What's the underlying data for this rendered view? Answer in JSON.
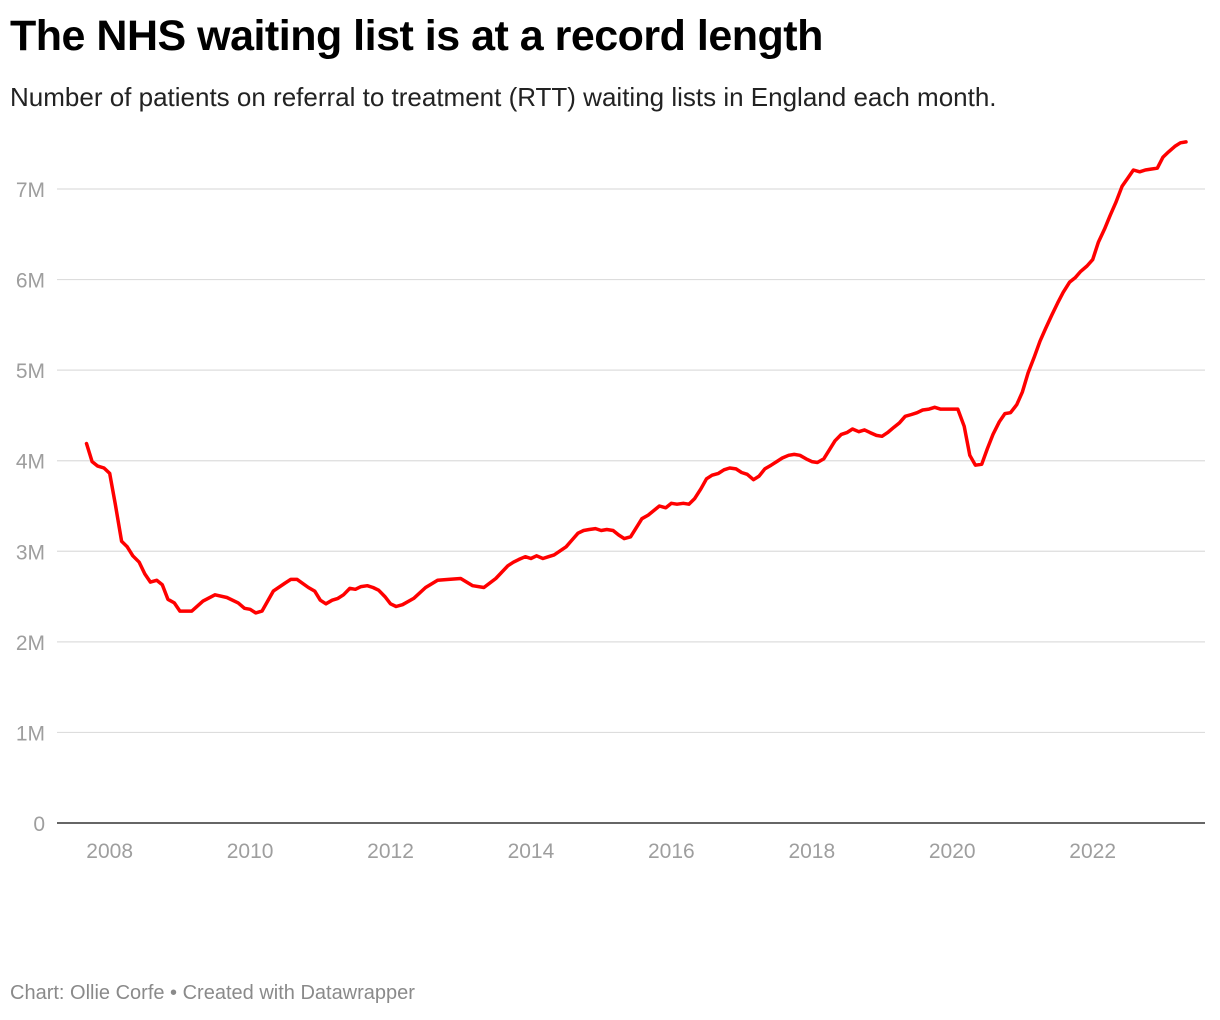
{
  "header": {
    "title": "The NHS waiting list is at a record length",
    "subtitle": "Number of patients on referral to treatment (RTT) waiting lists in England each month."
  },
  "footer": {
    "credit": "Chart: Ollie Corfe • Created with Datawrapper"
  },
  "chart_data": {
    "type": "line",
    "title": "The NHS waiting list is at a record length",
    "subtitle": "Number of patients on referral to treatment (RTT) waiting lists in England each month.",
    "xlabel": "",
    "ylabel": "",
    "x_unit": "year",
    "xlim": [
      2007.25,
      2023.6
    ],
    "ylim": [
      0,
      7500000
    ],
    "y_ticks": [
      0,
      1000000,
      2000000,
      3000000,
      4000000,
      5000000,
      6000000,
      7000000
    ],
    "y_tick_labels": [
      "0",
      "1M",
      "2M",
      "3M",
      "4M",
      "5M",
      "6M",
      "7M"
    ],
    "x_ticks": [
      2008,
      2010,
      2012,
      2014,
      2016,
      2018,
      2020,
      2022
    ],
    "x_tick_labels": [
      "2008",
      "2010",
      "2012",
      "2014",
      "2016",
      "2018",
      "2020",
      "2022"
    ],
    "grid": "horizontal",
    "color": "#ff0000",
    "series": [
      {
        "x": [
          2007.67,
          2007.75,
          2007.83,
          2007.92,
          2008.0,
          2008.08,
          2008.17,
          2008.25,
          2008.33,
          2008.42,
          2008.5,
          2008.58,
          2008.67,
          2008.75,
          2008.83,
          2008.92,
          2009.0,
          2009.17,
          2009.33,
          2009.5,
          2009.67,
          2009.83,
          2009.92,
          2010.0,
          2010.08,
          2010.17,
          2010.33,
          2010.5,
          2010.58,
          2010.67,
          2010.83,
          2010.92,
          2011.0,
          2011.08,
          2011.17,
          2011.25,
          2011.33,
          2011.42,
          2011.5,
          2011.58,
          2011.67,
          2011.75,
          2011.83,
          2011.92,
          2012.0,
          2012.08,
          2012.17,
          2012.33,
          2012.5,
          2012.67,
          2012.83,
          2013.0,
          2013.17,
          2013.33,
          2013.5,
          2013.67,
          2013.75,
          2013.83,
          2013.92,
          2014.0,
          2014.08,
          2014.17,
          2014.25,
          2014.33,
          2014.5,
          2014.58,
          2014.67,
          2014.75,
          2014.83,
          2014.92,
          2015.0,
          2015.08,
          2015.17,
          2015.25,
          2015.33,
          2015.42,
          2015.5,
          2015.58,
          2015.67,
          2015.83,
          2015.92,
          2016.0,
          2016.08,
          2016.17,
          2016.25,
          2016.33,
          2016.42,
          2016.5,
          2016.58,
          2016.67,
          2016.75,
          2016.83,
          2016.92,
          2017.0,
          2017.08,
          2017.17,
          2017.25,
          2017.33,
          2017.42,
          2017.5,
          2017.58,
          2017.67,
          2017.75,
          2017.83,
          2017.92,
          2018.0,
          2018.08,
          2018.17,
          2018.25,
          2018.33,
          2018.42,
          2018.5,
          2018.58,
          2018.67,
          2018.75,
          2018.83,
          2018.92,
          2019.0,
          2019.08,
          2019.17,
          2019.25,
          2019.33,
          2019.42,
          2019.5,
          2019.58,
          2019.67,
          2019.75,
          2019.83,
          2019.92,
          2020.0,
          2020.08,
          2020.17,
          2020.25,
          2020.33,
          2020.42,
          2020.5,
          2020.58,
          2020.67,
          2020.75,
          2020.83,
          2020.92,
          2021.0,
          2021.08,
          2021.17,
          2021.25,
          2021.33,
          2021.42,
          2021.5,
          2021.58,
          2021.67,
          2021.75,
          2021.83,
          2021.92,
          2022.0,
          2022.08,
          2022.17,
          2022.25,
          2022.33,
          2022.42,
          2022.5,
          2022.58,
          2022.67,
          2022.75,
          2022.83,
          2022.92,
          2023.0,
          2023.08,
          2023.17,
          2023.25,
          2023.33
        ],
        "values": [
          4190000,
          3990000,
          3940000,
          3920000,
          3860000,
          3520000,
          3110000,
          3050000,
          2950000,
          2880000,
          2750000,
          2660000,
          2680000,
          2630000,
          2470000,
          2430000,
          2340000,
          2340000,
          2450000,
          2520000,
          2490000,
          2430000,
          2370000,
          2360000,
          2320000,
          2340000,
          2560000,
          2650000,
          2690000,
          2690000,
          2600000,
          2560000,
          2460000,
          2420000,
          2460000,
          2480000,
          2520000,
          2590000,
          2580000,
          2610000,
          2620000,
          2600000,
          2570000,
          2500000,
          2420000,
          2390000,
          2410000,
          2480000,
          2600000,
          2680000,
          2690000,
          2700000,
          2620000,
          2600000,
          2700000,
          2840000,
          2880000,
          2910000,
          2940000,
          2920000,
          2950000,
          2920000,
          2940000,
          2960000,
          3050000,
          3120000,
          3200000,
          3230000,
          3240000,
          3250000,
          3230000,
          3240000,
          3230000,
          3180000,
          3140000,
          3160000,
          3260000,
          3360000,
          3400000,
          3500000,
          3480000,
          3530000,
          3520000,
          3530000,
          3520000,
          3580000,
          3690000,
          3800000,
          3840000,
          3860000,
          3900000,
          3920000,
          3910000,
          3870000,
          3850000,
          3790000,
          3830000,
          3910000,
          3950000,
          3990000,
          4030000,
          4060000,
          4070000,
          4060000,
          4020000,
          3990000,
          3980000,
          4020000,
          4120000,
          4220000,
          4290000,
          4310000,
          4350000,
          4320000,
          4340000,
          4310000,
          4280000,
          4270000,
          4310000,
          4370000,
          4420000,
          4490000,
          4510000,
          4530000,
          4560000,
          4570000,
          4590000,
          4570000,
          4570000,
          4570000,
          4570000,
          4380000,
          4060000,
          3950000,
          3960000,
          4130000,
          4290000,
          4430000,
          4520000,
          4530000,
          4620000,
          4760000,
          4970000,
          5150000,
          5320000,
          5460000,
          5610000,
          5740000,
          5860000,
          5970000,
          6020000,
          6090000,
          6150000,
          6220000,
          6410000,
          6560000,
          6710000,
          6850000,
          7030000,
          7120000,
          7210000,
          7190000,
          7210000,
          7220000,
          7230000,
          7350000,
          7410000,
          7470000,
          7510000,
          7520000
        ]
      }
    ]
  }
}
